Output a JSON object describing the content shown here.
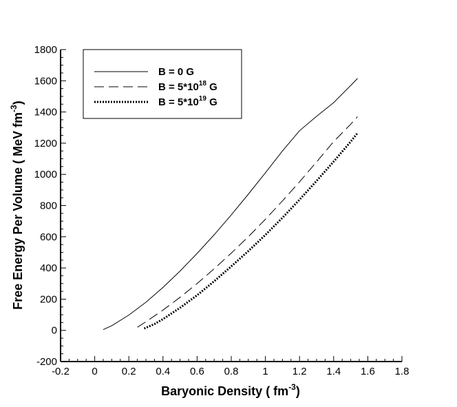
{
  "chart_data": {
    "type": "line",
    "title": "",
    "xlabel": "Baryonic Density ( fm",
    "xlabel_sup": "-3",
    "xlabel_end": ")",
    "ylabel": "Free Energy Per Volume ( MeV fm",
    "ylabel_sup": "-3",
    "ylabel_end": ")",
    "xlim": [
      -0.2,
      1.8
    ],
    "ylim": [
      -200,
      1800
    ],
    "x_ticks": [
      -0.2,
      0,
      0.2,
      0.4,
      0.6,
      0.8,
      1,
      1.2,
      1.4,
      1.6,
      1.8
    ],
    "x_tick_labels": [
      "-0.2",
      "0",
      "0.2",
      "0.4",
      "0.6",
      "0.8",
      "1",
      "1.2",
      "1.4",
      "1.6",
      "1.8"
    ],
    "y_ticks": [
      -200,
      0,
      200,
      400,
      600,
      800,
      1000,
      1200,
      1400,
      1600,
      1800
    ],
    "y_tick_labels": [
      "-200",
      "0",
      "200",
      "400",
      "600",
      "800",
      "1000",
      "1200",
      "1400",
      "1600",
      "1800"
    ],
    "grid": false,
    "legend_position": "top-left",
    "line_color": "#000000",
    "series": [
      {
        "name": "B = 0 G",
        "name_sup": "",
        "name_end": "",
        "line_style": "solid",
        "x": [
          0.05,
          0.1,
          0.2,
          0.3,
          0.4,
          0.5,
          0.6,
          0.7,
          0.8,
          0.9,
          1.0,
          1.1,
          1.2,
          1.3,
          1.4,
          1.5,
          1.54
        ],
        "y": [
          5,
          30,
          98,
          180,
          275,
          380,
          493,
          613,
          740,
          873,
          1010,
          1150,
          1280,
          1372,
          1460,
          1570,
          1615
        ]
      },
      {
        "name": "B = 5*10",
        "name_sup": "18",
        "name_end": " G",
        "line_style": "dashed",
        "x": [
          0.25,
          0.3,
          0.4,
          0.5,
          0.6,
          0.7,
          0.8,
          0.9,
          1.0,
          1.1,
          1.2,
          1.3,
          1.4,
          1.5,
          1.54
        ],
        "y": [
          20,
          55,
          130,
          212,
          300,
          395,
          495,
          600,
          712,
          830,
          952,
          1080,
          1210,
          1322,
          1370
        ]
      },
      {
        "name": "B = 5*10",
        "name_sup": "19",
        "name_end": " G",
        "line_style": "dotted",
        "x": [
          0.29,
          0.35,
          0.4,
          0.5,
          0.6,
          0.7,
          0.8,
          0.9,
          1.0,
          1.1,
          1.2,
          1.3,
          1.4,
          1.5,
          1.54
        ],
        "y": [
          12,
          40,
          72,
          145,
          225,
          315,
          410,
          508,
          612,
          722,
          838,
          958,
          1082,
          1210,
          1265
        ]
      }
    ]
  }
}
